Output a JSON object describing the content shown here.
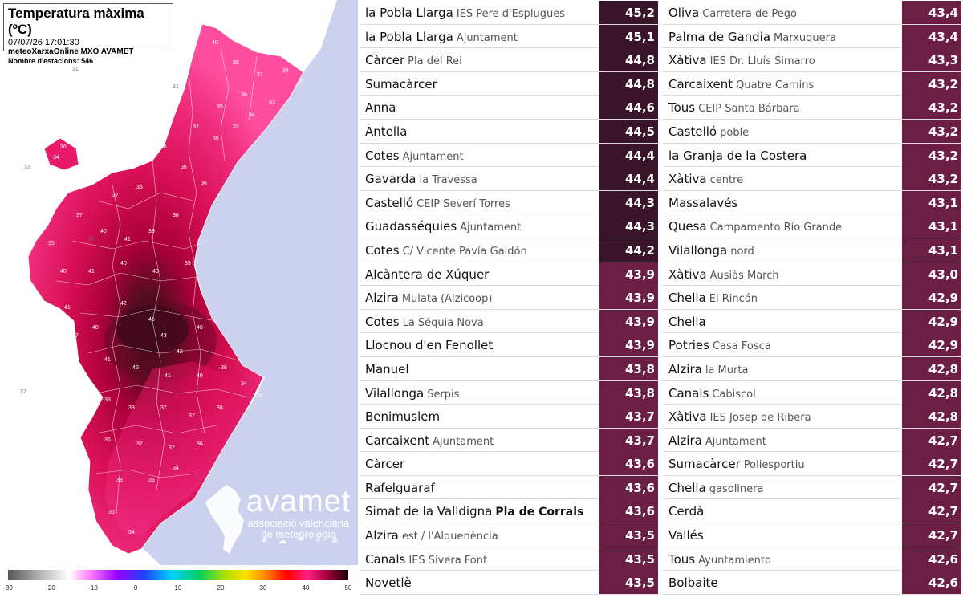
{
  "map": {
    "title": "Temperatura màxima (ºC)",
    "timestamp": "07/07/26 17:01:30",
    "source": "meteoXarxaOnline MXO AVAMET",
    "station_count": "Nombre d'estacions: 546",
    "logo": {
      "name": "avamet",
      "subtitle_line1": "associació valenciana",
      "subtitle_line2": "de meteorologia"
    },
    "colors": {
      "sea": "#ccd2ee",
      "inland": "#ffffff",
      "very_hot": "#3b0818",
      "hot": "#c4003d",
      "warm": "#e8186a",
      "mild": "#ff3fa0"
    },
    "scale": {
      "ticks": [
        "-30",
        "-20",
        "-10",
        "0",
        "10",
        "20",
        "30",
        "40",
        "50"
      ]
    }
  },
  "colors": {
    "value_dark": "#3a1428",
    "value_mid": "#6b1f45"
  },
  "stations_left": [
    {
      "name": "la Pobla Llarga",
      "loc": "IES Pere d'Esplugues",
      "value": "45,2",
      "tone": "dark"
    },
    {
      "name": "la Pobla Llarga",
      "loc": "Ajuntament",
      "value": "45,1",
      "tone": "dark"
    },
    {
      "name": "Càrcer",
      "loc": "Pla del Rei",
      "value": "44,8",
      "tone": "dark"
    },
    {
      "name": "Sumacàrcer",
      "loc": "",
      "value": "44,8",
      "tone": "dark"
    },
    {
      "name": "Anna",
      "loc": "",
      "value": "44,6",
      "tone": "dark"
    },
    {
      "name": "Antella",
      "loc": "",
      "value": "44,5",
      "tone": "dark"
    },
    {
      "name": "Cotes",
      "loc": "Ajuntament",
      "value": "44,4",
      "tone": "dark"
    },
    {
      "name": "Gavarda",
      "loc": "la Travessa",
      "value": "44,4",
      "tone": "dark"
    },
    {
      "name": "Castelló",
      "loc": "CEIP Severí Torres",
      "value": "44,3",
      "tone": "dark"
    },
    {
      "name": "Guadasséquies",
      "loc": "Ajuntament",
      "value": "44,3",
      "tone": "dark"
    },
    {
      "name": "Cotes",
      "loc": "C/ Vicente Pavía Galdón",
      "value": "44,2",
      "tone": "dark"
    },
    {
      "name": "Alcàntera de Xúquer",
      "loc": "",
      "value": "43,9",
      "tone": "mid"
    },
    {
      "name": "Alzira",
      "loc": "Mulata (Alzicoop)",
      "value": "43,9",
      "tone": "mid"
    },
    {
      "name": "Cotes",
      "loc": "La Séquia Nova",
      "value": "43,9",
      "tone": "mid"
    },
    {
      "name": "Llocnou d'en Fenollet",
      "loc": "",
      "value": "43,9",
      "tone": "mid"
    },
    {
      "name": "Manuel",
      "loc": "",
      "value": "43,8",
      "tone": "mid"
    },
    {
      "name": "Vilallonga",
      "loc": "Serpis",
      "value": "43,8",
      "tone": "mid"
    },
    {
      "name": "Benimuslem",
      "loc": "",
      "value": "43,7",
      "tone": "mid"
    },
    {
      "name": "Carcaixent",
      "loc": "Ajuntament",
      "value": "43,7",
      "tone": "mid"
    },
    {
      "name": "Càrcer",
      "loc": "",
      "value": "43,6",
      "tone": "mid"
    },
    {
      "name": "Rafelguaraf",
      "loc": "",
      "value": "43,6",
      "tone": "mid"
    },
    {
      "name": "Simat de la Valldigna",
      "loc": "Pla de Corrals",
      "value": "43,6",
      "tone": "mid",
      "loc_bold": true
    },
    {
      "name": "Alzira",
      "loc": "est / l'Alquenència",
      "value": "43,5",
      "tone": "mid"
    },
    {
      "name": "Canals",
      "loc": "IES Sivera Font",
      "value": "43,5",
      "tone": "mid"
    },
    {
      "name": "Novetlè",
      "loc": "",
      "value": "43,5",
      "tone": "mid"
    }
  ],
  "stations_right": [
    {
      "name": "Oliva",
      "loc": "Carretera de Pego",
      "value": "43,4",
      "tone": "mid"
    },
    {
      "name": "Palma de Gandia",
      "loc": "Marxuquera",
      "value": "43,4",
      "tone": "mid"
    },
    {
      "name": "Xàtiva",
      "loc": "IES Dr. Lluís Simarro",
      "value": "43,3",
      "tone": "mid"
    },
    {
      "name": "Carcaixent",
      "loc": "Quatre Camins",
      "value": "43,2",
      "tone": "mid"
    },
    {
      "name": "Tous",
      "loc": "CEIP Santa Bárbara",
      "value": "43,2",
      "tone": "mid"
    },
    {
      "name": "Castelló",
      "loc": "poble",
      "value": "43,2",
      "tone": "mid"
    },
    {
      "name": "la Granja de la Costera",
      "loc": "",
      "value": "43,2",
      "tone": "mid"
    },
    {
      "name": "Xàtiva",
      "loc": "centre",
      "value": "43,2",
      "tone": "mid"
    },
    {
      "name": "Massalavés",
      "loc": "",
      "value": "43,1",
      "tone": "mid"
    },
    {
      "name": "Quesa",
      "loc": "Campamento Río Grande",
      "value": "43,1",
      "tone": "mid"
    },
    {
      "name": "Vilallonga",
      "loc": "nord",
      "value": "43,1",
      "tone": "mid"
    },
    {
      "name": "Xàtiva",
      "loc": "Ausiàs March",
      "value": "43,0",
      "tone": "mid"
    },
    {
      "name": "Chella",
      "loc": "El Rincón",
      "value": "42,9",
      "tone": "mid"
    },
    {
      "name": "Chella",
      "loc": "",
      "value": "42,9",
      "tone": "mid"
    },
    {
      "name": "Potries",
      "loc": "Casa Fosca",
      "value": "42,9",
      "tone": "mid"
    },
    {
      "name": "Alzira",
      "loc": "la Murta",
      "value": "42,8",
      "tone": "mid"
    },
    {
      "name": "Canals",
      "loc": "Cabiscol",
      "value": "42,8",
      "tone": "mid"
    },
    {
      "name": "Xàtiva",
      "loc": "IES Josep de Ribera",
      "value": "42,8",
      "tone": "mid"
    },
    {
      "name": "Alzira",
      "loc": "Ajuntament",
      "value": "42,7",
      "tone": "mid"
    },
    {
      "name": "Sumacàrcer",
      "loc": "Poliesportiu",
      "value": "42,7",
      "tone": "mid"
    },
    {
      "name": "Chella",
      "loc": "gasolinera",
      "value": "42,7",
      "tone": "mid"
    },
    {
      "name": "Cerdà",
      "loc": "",
      "value": "42,7",
      "tone": "mid"
    },
    {
      "name": "Vallés",
      "loc": "",
      "value": "42,7",
      "tone": "mid"
    },
    {
      "name": "Tous",
      "loc": "Ayuntamiento",
      "value": "42,6",
      "tone": "mid"
    },
    {
      "name": "Bolbaite",
      "loc": "",
      "value": "42,6",
      "tone": "mid"
    }
  ]
}
